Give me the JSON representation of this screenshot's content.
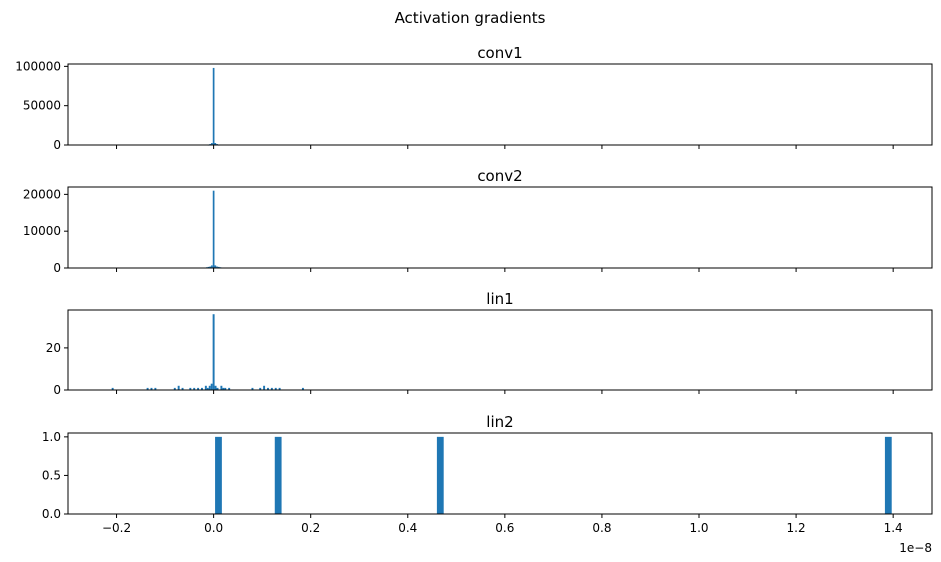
{
  "figure_title": "Activation gradients",
  "colors": {
    "bar": "#1f77b4",
    "axis": "#000000",
    "background": "#ffffff"
  },
  "x_offset_label": "1e−8",
  "chart_data": [
    {
      "type": "bar",
      "title": "conv1",
      "xlabel": "",
      "ylabel": "",
      "x_unit": "1e-8",
      "xlim": [
        -0.3,
        1.48
      ],
      "ylim": [
        0,
        103000
      ],
      "x_ticks": [
        -0.2,
        0.0,
        0.2,
        0.4,
        0.6,
        0.8,
        1.0,
        1.2,
        1.4
      ],
      "x_tick_labels_visible": false,
      "y_ticks": [
        0,
        50000,
        100000
      ],
      "y_tick_labels": [
        "0",
        "50000",
        "100000"
      ],
      "bar_width": 0.0035,
      "x": [
        -0.0105,
        -0.007,
        -0.0035,
        0.0,
        0.0035,
        0.007,
        0.0105
      ],
      "values": [
        300,
        1200,
        2500,
        98000,
        2500,
        1200,
        300
      ]
    },
    {
      "type": "bar",
      "title": "conv2",
      "xlabel": "",
      "ylabel": "",
      "x_unit": "1e-8",
      "xlim": [
        -0.3,
        1.48
      ],
      "ylim": [
        0,
        22000
      ],
      "x_ticks": [
        -0.2,
        0.0,
        0.2,
        0.4,
        0.6,
        0.8,
        1.0,
        1.2,
        1.4
      ],
      "x_tick_labels_visible": false,
      "y_ticks": [
        0,
        10000,
        20000
      ],
      "y_tick_labels": [
        "0",
        "10000",
        "20000"
      ],
      "bar_width": 0.0035,
      "x": [
        -0.014,
        -0.0105,
        -0.007,
        -0.0035,
        0.0,
        0.0035,
        0.007,
        0.0105,
        0.014
      ],
      "values": [
        200,
        300,
        400,
        700,
        21000,
        700,
        400,
        300,
        200
      ]
    },
    {
      "type": "bar",
      "title": "lin1",
      "xlabel": "",
      "ylabel": "",
      "x_unit": "1e-8",
      "xlim": [
        -0.3,
        1.48
      ],
      "ylim": [
        0,
        38
      ],
      "x_ticks": [
        -0.2,
        0.0,
        0.2,
        0.4,
        0.6,
        0.8,
        1.0,
        1.2,
        1.4
      ],
      "x_tick_labels_visible": false,
      "y_ticks": [
        0,
        20
      ],
      "y_tick_labels": [
        "0",
        "20"
      ],
      "bar_width": 0.004,
      "x": [
        -0.208,
        -0.136,
        -0.128,
        -0.12,
        -0.08,
        -0.072,
        -0.064,
        -0.048,
        -0.04,
        -0.032,
        -0.024,
        -0.016,
        -0.012,
        -0.008,
        -0.004,
        0.0,
        0.004,
        0.008,
        0.016,
        0.02,
        0.024,
        0.032,
        0.08,
        0.096,
        0.104,
        0.112,
        0.12,
        0.128,
        0.136,
        0.184
      ],
      "values": [
        1,
        1,
        1,
        1,
        1,
        2,
        1,
        1,
        1,
        1,
        1,
        2,
        1,
        2,
        3,
        36,
        2,
        1,
        2,
        1,
        1,
        1,
        1,
        1,
        2,
        1,
        1,
        1,
        1,
        1
      ]
    },
    {
      "type": "bar",
      "title": "lin2",
      "xlabel": "",
      "ylabel": "",
      "x_unit": "1e-8",
      "xlim": [
        -0.3,
        1.48
      ],
      "ylim": [
        0,
        1.05
      ],
      "x_ticks": [
        -0.2,
        0.0,
        0.2,
        0.4,
        0.6,
        0.8,
        1.0,
        1.2,
        1.4
      ],
      "x_tick_labels_visible": true,
      "x_tick_labels": [
        "−0.2",
        "0.0",
        "0.2",
        "0.4",
        "0.6",
        "0.8",
        "1.0",
        "1.2",
        "1.4"
      ],
      "y_ticks": [
        0.0,
        0.5,
        1.0
      ],
      "y_tick_labels": [
        "0.0",
        "0.5",
        "1.0"
      ],
      "bar_width": 0.014,
      "x": [
        0.01,
        0.133,
        0.467,
        1.39
      ],
      "values": [
        1,
        1,
        1,
        1
      ]
    }
  ]
}
